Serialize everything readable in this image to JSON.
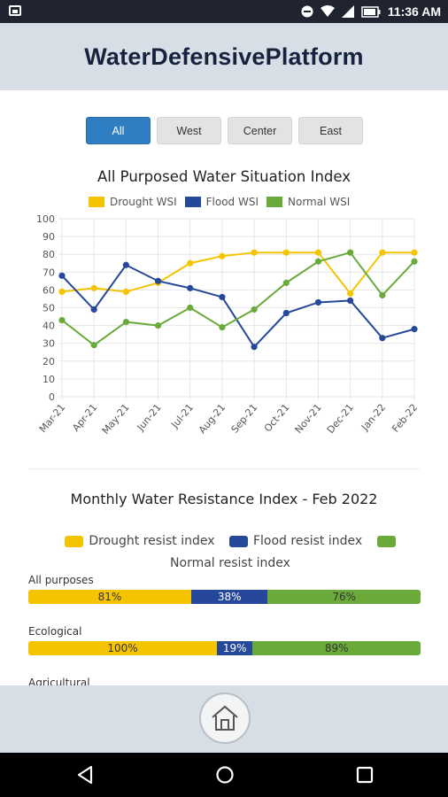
{
  "status_bar": {
    "time": "11:36 AM",
    "icons": [
      "image-icon",
      "do-not-disturb-icon",
      "wifi-icon",
      "signal-icon",
      "battery-icon"
    ]
  },
  "header": {
    "title": "WaterDefensivePlatform"
  },
  "tabs": [
    {
      "label": "All",
      "active": true
    },
    {
      "label": "West",
      "active": false
    },
    {
      "label": "Center",
      "active": false
    },
    {
      "label": "East",
      "active": false
    }
  ],
  "chart_data": [
    {
      "type": "line",
      "title": "All Purposed Water Situation Index",
      "categories": [
        "Mar-21",
        "Apr-21",
        "May-21",
        "Jun-21",
        "Jul-21",
        "Aug-21",
        "Sep-21",
        "Oct-21",
        "Nov-21",
        "Dec-21",
        "Jan-22",
        "Feb-22"
      ],
      "series": [
        {
          "name": "Drought WSI",
          "color": "#f5c400",
          "values": [
            59,
            61,
            59,
            64,
            75,
            79,
            81,
            81,
            81,
            58,
            81,
            81
          ]
        },
        {
          "name": "Flood WSI",
          "color": "#26489a",
          "values": [
            68,
            49,
            74,
            65,
            61,
            56,
            28,
            47,
            53,
            54,
            33,
            38
          ]
        },
        {
          "name": "Normal WSI",
          "color": "#6aaa3a",
          "values": [
            43,
            29,
            42,
            40,
            50,
            39,
            49,
            64,
            76,
            81,
            57,
            76
          ]
        }
      ],
      "ylim": [
        0,
        100
      ],
      "yticks": [
        0,
        10,
        20,
        30,
        40,
        50,
        60,
        70,
        80,
        90,
        100
      ],
      "grid": true,
      "legend": "top"
    },
    {
      "type": "bar",
      "title": "Monthly Water Resistance Index - Feb 2022",
      "legend_labels": [
        "Drought resist index",
        "Flood resist index",
        "Normal resist index"
      ],
      "colors": {
        "drought": "#f5c400",
        "flood": "#26489a",
        "normal": "#6aaa3a"
      },
      "groups": [
        {
          "label": "All purposes",
          "drought": 81,
          "flood": 38,
          "normal": 76,
          "drought_text": "81%",
          "flood_text": "38%",
          "normal_text": "76%"
        },
        {
          "label": "Ecological",
          "drought": 100,
          "flood": 19,
          "normal": 89,
          "drought_text": "100%",
          "flood_text": "19%",
          "normal_text": "89%"
        },
        {
          "label": "Agricultural"
        }
      ]
    }
  ],
  "bottom": {
    "home_icon": "home-icon"
  },
  "nav": {
    "icons": [
      "back-icon",
      "home-circle-icon",
      "recents-icon"
    ]
  }
}
